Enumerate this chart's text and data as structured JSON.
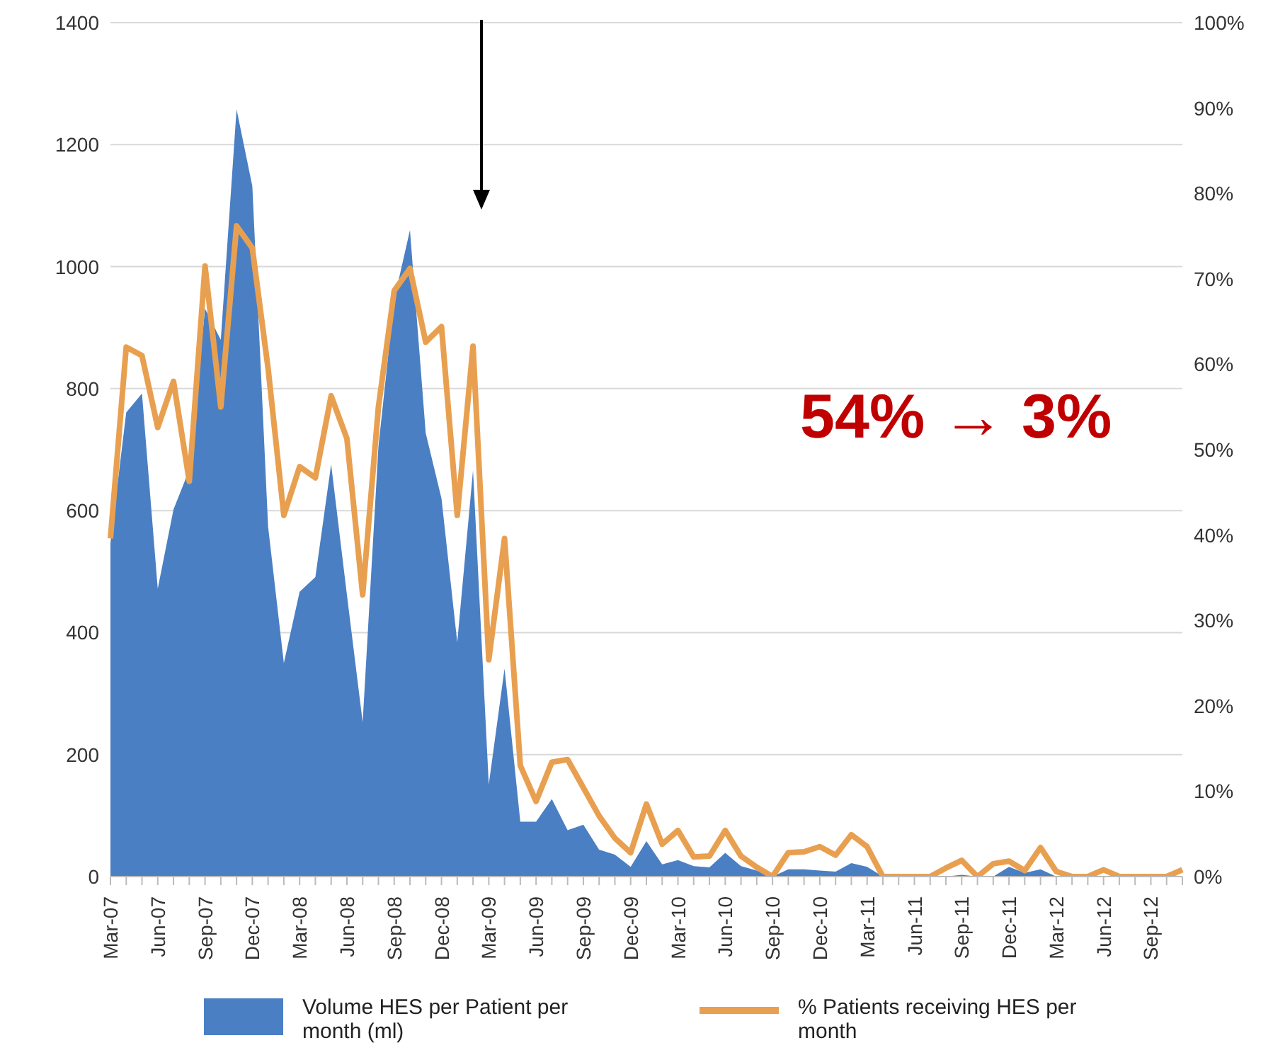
{
  "chart_data": {
    "type": "area",
    "categories": [
      "Mar-07",
      null,
      null,
      "Jun-07",
      null,
      null,
      "Sep-07",
      null,
      null,
      "Dec-07",
      null,
      null,
      "Mar-08",
      null,
      null,
      "Jun-08",
      null,
      null,
      "Sep-08",
      null,
      null,
      "Dec-08",
      null,
      null,
      "Mar-09",
      null,
      null,
      "Jun-09",
      null,
      null,
      "Sep-09",
      null,
      null,
      "Dec-09",
      null,
      null,
      "Mar-10",
      null,
      null,
      "Jun-10",
      null,
      null,
      "Sep-10",
      null,
      null,
      "Dec-10",
      null,
      null,
      "Mar-11",
      null,
      null,
      "Jun-11",
      null,
      null,
      "Sep-11",
      null,
      null,
      "Dec-11",
      null,
      null,
      "Mar-12",
      null,
      null,
      "Jun-12",
      null,
      null,
      "Sep-12",
      null,
      null
    ],
    "series": [
      {
        "name": "Volume HES per Patient per month (ml)",
        "color": "#4a7fc4",
        "values": [
          547,
          761,
          792,
          472,
          602,
          667,
          931,
          880,
          1258,
          1132,
          574,
          350,
          467,
          491,
          676,
          462,
          253,
          705,
          946,
          1060,
          727,
          620,
          384,
          666,
          151,
          341,
          90,
          90,
          127,
          76,
          85,
          44,
          36,
          16,
          58,
          20,
          27,
          17,
          15,
          39,
          17,
          10,
          0,
          12,
          12,
          10,
          8,
          22,
          16,
          0,
          0,
          0,
          0,
          0,
          3,
          0,
          0,
          16,
          6,
          12,
          0,
          0,
          0,
          0,
          0,
          0,
          0,
          0,
          0
        ]
      },
      {
        "name": "% Patients receiving HES per month",
        "type": "line",
        "axis": "y2",
        "color": "#e8a050",
        "values": [
          39.6,
          62,
          61,
          52.6,
          58,
          46.3,
          71.5,
          55,
          76.2,
          73.6,
          59.5,
          42.3,
          48,
          46.7,
          56.3,
          51.3,
          33,
          55,
          68.6,
          71.2,
          62.6,
          64.4,
          42.3,
          62.1,
          25.4,
          39.6,
          13,
          8.8,
          13.4,
          13.7,
          10.4,
          7.1,
          4.5,
          2.8,
          8.5,
          3.8,
          5.4,
          2.3,
          2.4,
          5.4,
          2.4,
          1.1,
          0,
          2.8,
          2.9,
          3.5,
          2.5,
          4.9,
          3.5,
          0,
          0,
          0,
          0,
          1,
          1.9,
          0,
          1.5,
          1.8,
          0.7,
          3.4,
          0.6,
          0,
          0,
          0.8,
          0,
          0,
          0,
          0,
          0.8
        ]
      }
    ],
    "ylim": [
      0,
      1400
    ],
    "yticks": [
      0,
      200,
      400,
      600,
      800,
      1000,
      1200,
      1400
    ],
    "y2lim": [
      0,
      100
    ],
    "y2ticks": [
      {
        "value": 0,
        "label": "0%"
      },
      {
        "value": 10,
        "label": "10%"
      },
      {
        "value": 20,
        "label": "20%"
      },
      {
        "value": 30,
        "label": "30%"
      },
      {
        "value": 40,
        "label": "40%"
      },
      {
        "value": 50,
        "label": "50%"
      },
      {
        "value": 60,
        "label": "60%"
      },
      {
        "value": 70,
        "label": "70%"
      },
      {
        "value": 80,
        "label": "80%"
      },
      {
        "value": 90,
        "label": "90%"
      },
      {
        "value": 100,
        "label": "100%"
      }
    ],
    "grid": "y",
    "legend": "bottom",
    "annotations": [
      "54% → 3%"
    ]
  }
}
